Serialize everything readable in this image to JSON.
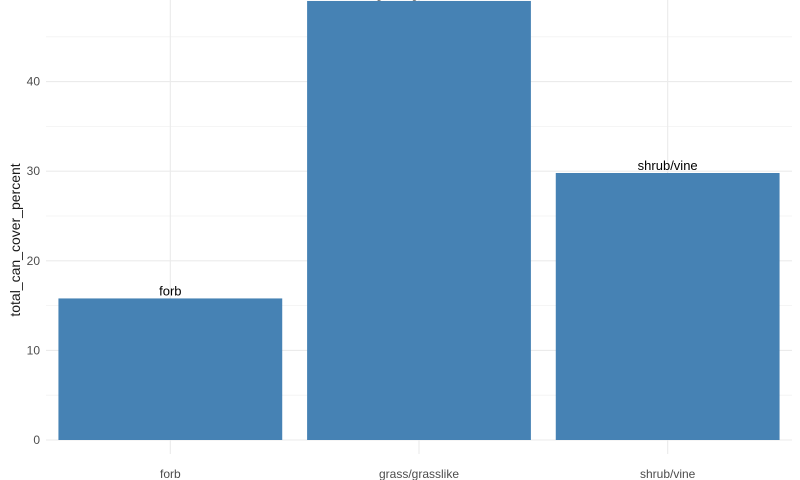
{
  "chart_data": {
    "type": "bar",
    "categories": [
      "forb",
      "grass/grasslike",
      "shrub/vine"
    ],
    "values": [
      15.8,
      49.0,
      29.8
    ],
    "bar_labels": [
      "forb",
      "grass/grasslike",
      "shrub/vine"
    ],
    "title": "",
    "xlabel": "",
    "ylabel": "total_can_cover_percent",
    "ylim": [
      0,
      49
    ],
    "yticks": [
      0,
      10,
      20,
      30,
      40
    ],
    "grid": true,
    "bar_color": "#4682B4"
  }
}
